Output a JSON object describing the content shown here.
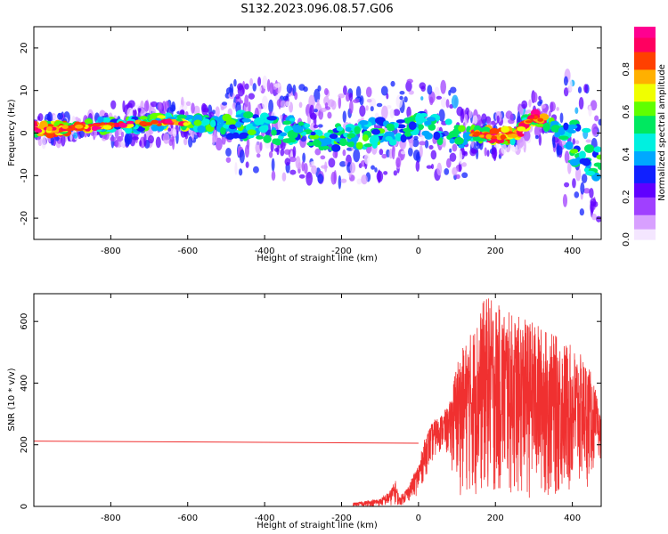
{
  "title": "S132.2023.096.08.57.G06",
  "chart_data": [
    {
      "type": "heatmap",
      "xlabel": "Height of straight line (km)",
      "ylabel": "Frequency (Hz)",
      "xlim": [
        -1000,
        475
      ],
      "ylim": [
        -25,
        25
      ],
      "x_ticks": [
        -800,
        -600,
        -400,
        -200,
        0,
        200,
        400
      ],
      "y_ticks": [
        -20,
        -10,
        0,
        10,
        20
      ],
      "colorbar": {
        "label": "Normalized spectral amplitude",
        "range": [
          0,
          1
        ],
        "ticks": [
          0.0,
          0.2,
          0.4,
          0.6,
          0.8
        ],
        "colors": [
          "#f4e6ff",
          "#d8a0ff",
          "#a040ff",
          "#6000ff",
          "#1020ff",
          "#00a8ff",
          "#00f0e0",
          "#00e860",
          "#60ff00",
          "#f0ff00",
          "#ffb000",
          "#ff4000",
          "#ff0060",
          "#ff0090"
        ]
      },
      "ridge": [
        [
          -1000,
          0.8
        ],
        [
          -950,
          0.8
        ],
        [
          -900,
          1.2
        ],
        [
          -850,
          1.5
        ],
        [
          -800,
          1.8
        ],
        [
          -750,
          2.0
        ],
        [
          -700,
          2.3
        ],
        [
          -650,
          2.5
        ],
        [
          -600,
          2.4
        ],
        [
          -550,
          2.2
        ],
        [
          -500,
          2.0
        ],
        [
          -450,
          1.5
        ],
        [
          -400,
          1.0
        ],
        [
          -350,
          0.5
        ],
        [
          -300,
          0.0
        ],
        [
          -250,
          -0.5
        ],
        [
          -200,
          -1.0
        ],
        [
          -150,
          -0.5
        ],
        [
          -100,
          0.0
        ],
        [
          -50,
          1.0
        ],
        [
          0,
          2.0
        ],
        [
          50,
          1.0
        ],
        [
          100,
          -0.5
        ],
        [
          150,
          0.0
        ],
        [
          200,
          -0.8
        ],
        [
          250,
          -0.5
        ],
        [
          300,
          4.0
        ],
        [
          350,
          1.5
        ],
        [
          400,
          -2.0
        ],
        [
          450,
          -5.0
        ],
        [
          475,
          -6.0
        ]
      ]
    },
    {
      "type": "line",
      "xlabel": "Height of straight line (km)",
      "ylabel": "SNR (10 * v/v)",
      "xlim": [
        -1000,
        475
      ],
      "ylim": [
        0,
        690
      ],
      "x_ticks": [
        -800,
        -600,
        -400,
        -200,
        0,
        200,
        400
      ],
      "y_ticks": [
        0,
        200,
        400,
        600
      ],
      "color": "#f03030",
      "baseline_segment": [
        [
          -1000,
          212
        ],
        [
          0,
          205
        ]
      ],
      "envelope": [
        [
          -170,
          0,
          12
        ],
        [
          -100,
          0,
          25
        ],
        [
          -75,
          0,
          50
        ],
        [
          -60,
          5,
          85
        ],
        [
          -50,
          0,
          30
        ],
        [
          -25,
          15,
          70
        ],
        [
          0,
          40,
          140
        ],
        [
          20,
          100,
          240
        ],
        [
          40,
          150,
          280
        ],
        [
          60,
          180,
          300
        ],
        [
          80,
          150,
          330
        ],
        [
          100,
          40,
          480
        ],
        [
          150,
          20,
          600
        ],
        [
          175,
          15,
          690
        ],
        [
          200,
          15,
          660
        ],
        [
          250,
          15,
          620
        ],
        [
          300,
          15,
          600
        ],
        [
          350,
          15,
          560
        ],
        [
          400,
          20,
          520
        ],
        [
          440,
          60,
          470
        ],
        [
          460,
          120,
          380
        ],
        [
          475,
          160,
          280
        ]
      ]
    }
  ]
}
